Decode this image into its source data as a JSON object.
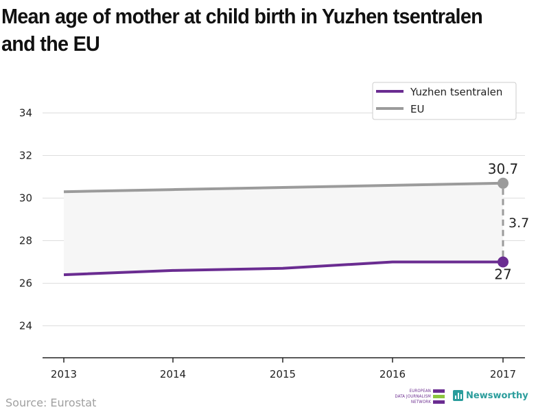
{
  "title": "Mean age of mother at child birth in Yuzhen tsentralen and the EU",
  "source": "Source: Eurostat",
  "branding": {
    "ejn_lines": [
      "EUROPEAN",
      "DATA JOURNALISM",
      "NETWORK"
    ],
    "newsworthy": "Newsworthy"
  },
  "colors": {
    "region": "#6a2c91",
    "eu": "#9b9b9b",
    "gap_fill": "#f6f6f6",
    "grid": "#dddddd",
    "ejn_green": "#8dc63f",
    "newsworthy": "#2a9d9c"
  },
  "chart_data": {
    "type": "line",
    "x": [
      2013,
      2014,
      2015,
      2016,
      2017
    ],
    "series": [
      {
        "name": "Yuzhen tsentralen",
        "values": [
          26.4,
          26.6,
          26.7,
          27.0,
          27.0
        ]
      },
      {
        "name": "EU",
        "values": [
          30.3,
          30.4,
          30.5,
          30.6,
          30.7
        ]
      }
    ],
    "yticks": [
      24,
      26,
      28,
      30,
      32,
      34
    ],
    "ylim": [
      22.5,
      35.5
    ],
    "grid": true,
    "legend": "top-right",
    "annotations": {
      "eu_end_label": "30.7",
      "region_end_label": "27",
      "gap_label": "3.7"
    }
  }
}
